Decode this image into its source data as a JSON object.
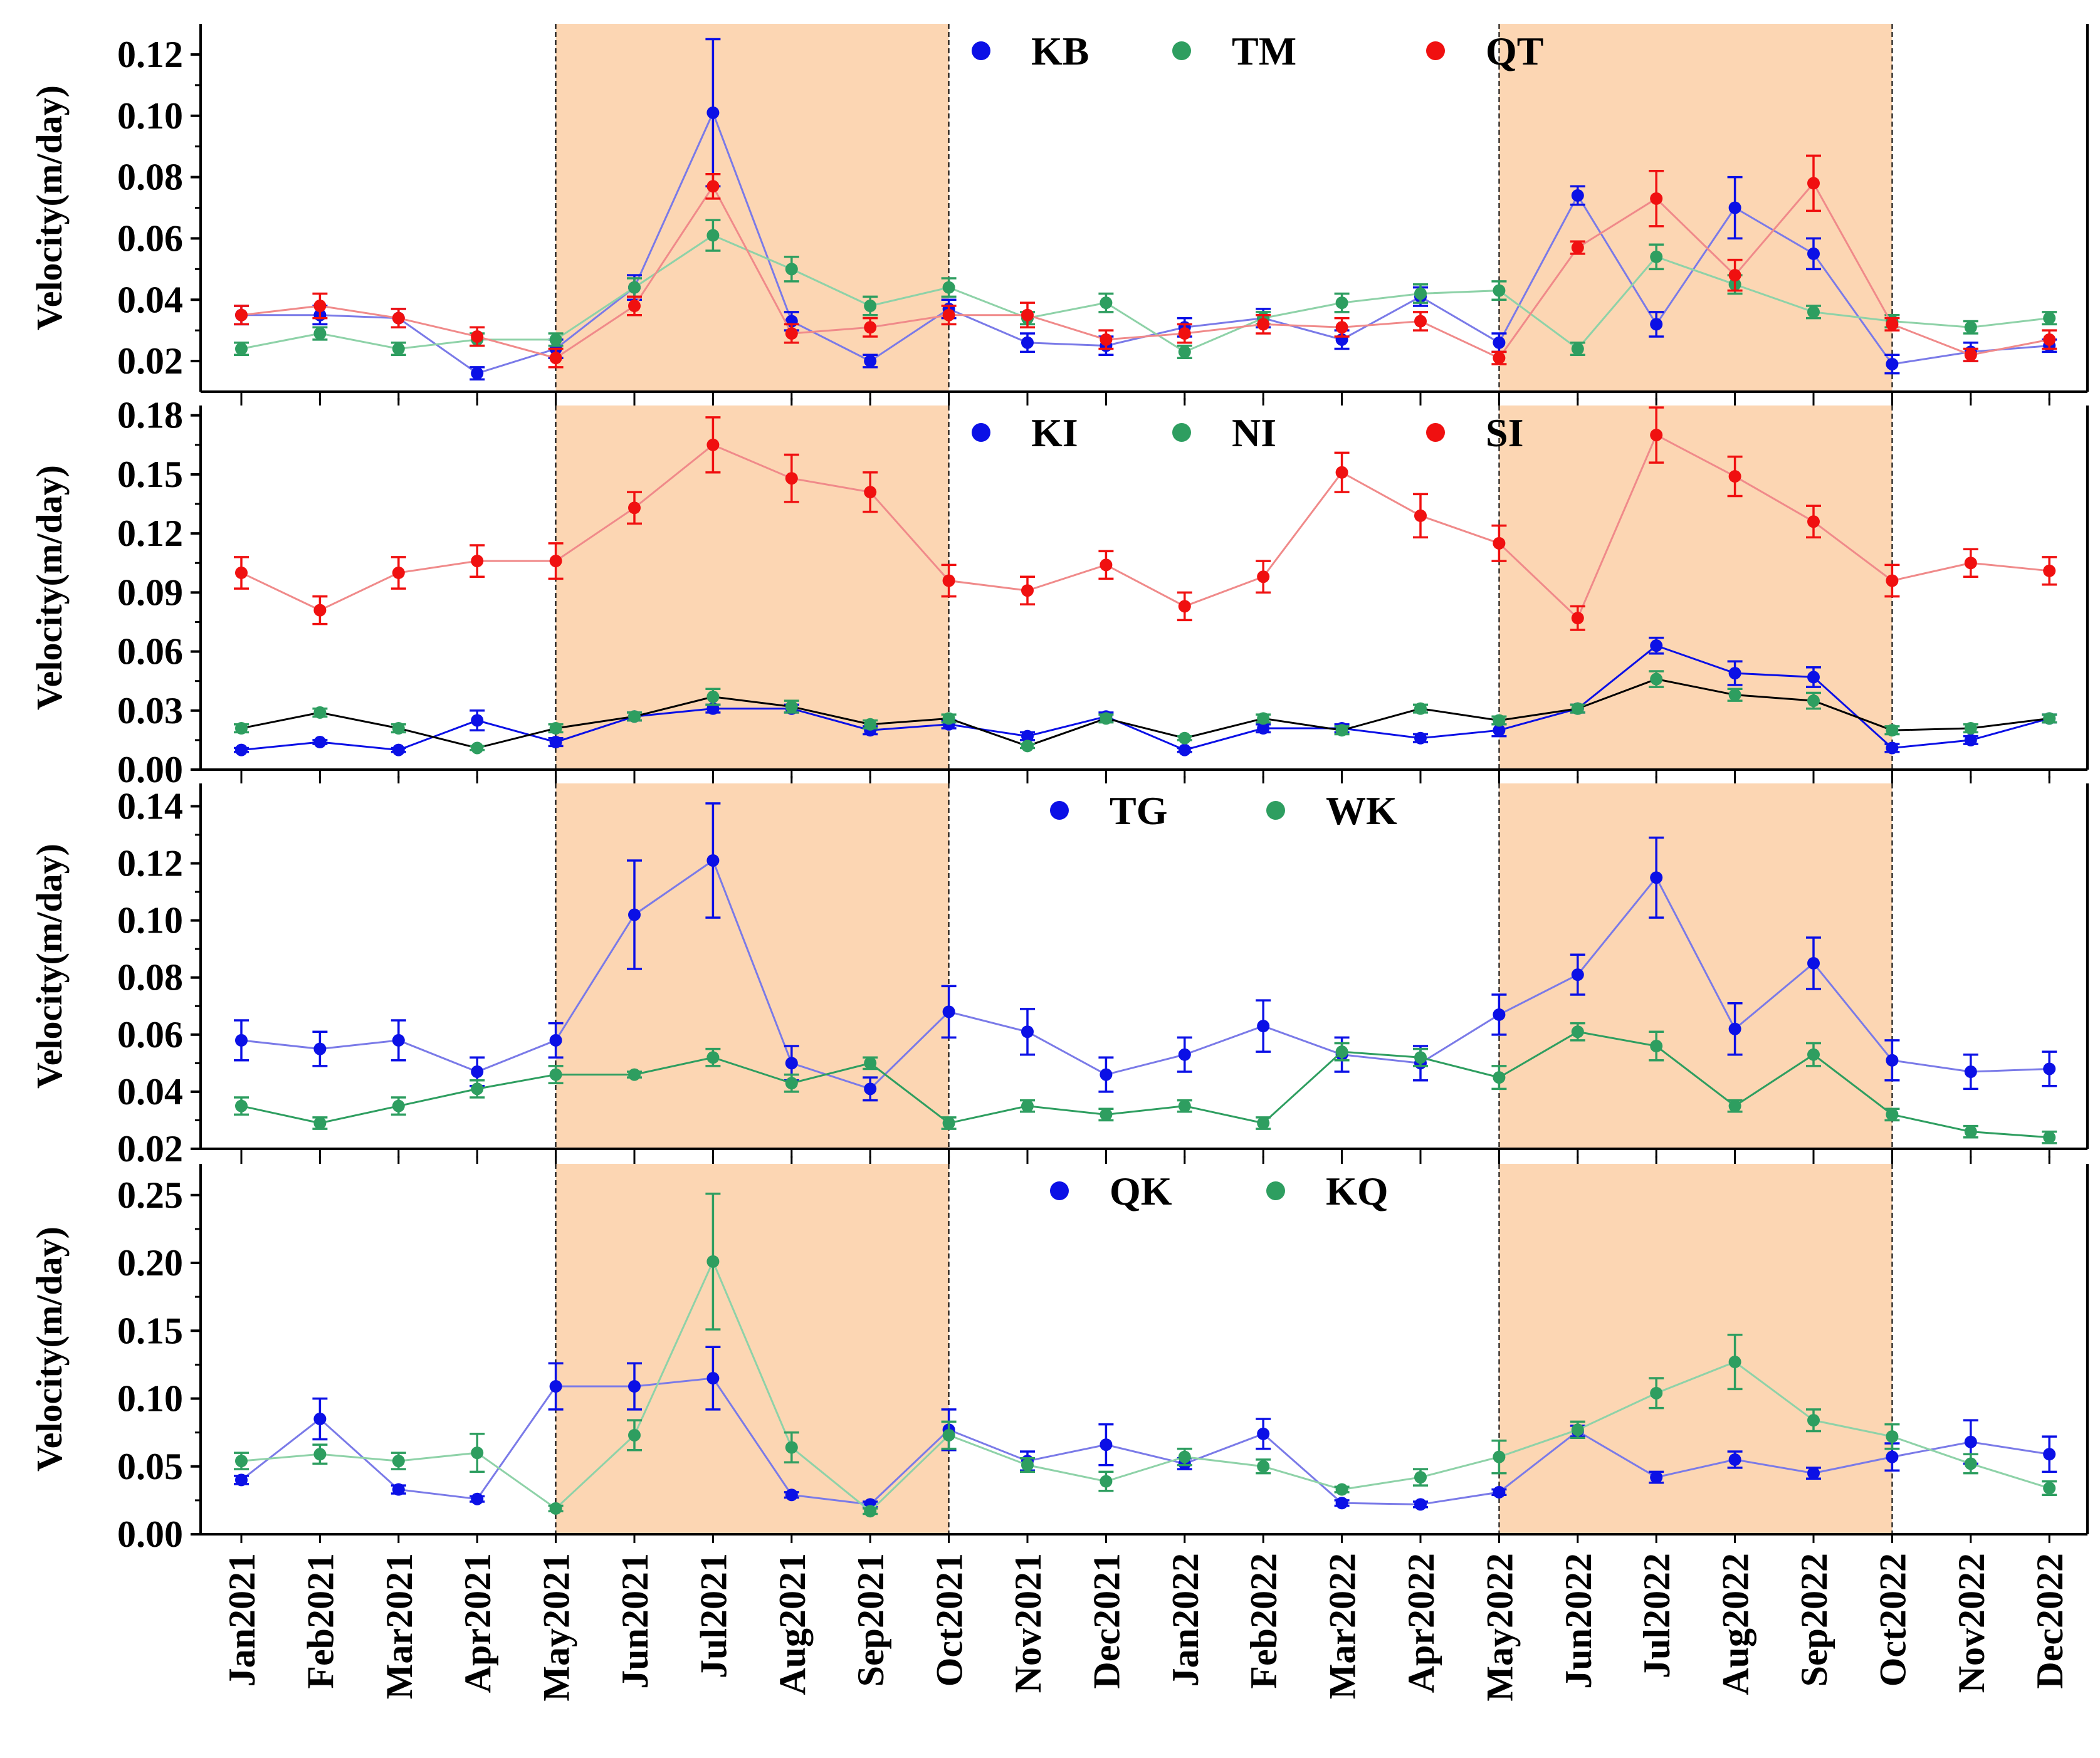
{
  "chart_data": {
    "type": "line",
    "figure_ylabel": "Velocity(m/day)",
    "x": [
      "Jan2021",
      "Feb2021",
      "Mar2021",
      "Apr2021",
      "May2021",
      "Jun2021",
      "Jul2021",
      "Aug2021",
      "Sep2021",
      "Oct2021",
      "Nov2021",
      "Dec2021",
      "Jan2022",
      "Feb2022",
      "Mar2022",
      "Apr2022",
      "May2022",
      "Jun2022",
      "Jul2022",
      "Aug2022",
      "Sep2022",
      "Oct2022",
      "Nov2022",
      "Dec2022"
    ],
    "shaded_periods": [
      [
        "May2021",
        "Oct2021"
      ],
      [
        "May2022",
        "Oct2022"
      ]
    ],
    "colors": {
      "blue": "#0b10e6",
      "green": "#2e9e60",
      "red": "#f01010",
      "shade": "#fcd6b3"
    },
    "panels": [
      {
        "ylabel": "Velocity(m/day)",
        "ylim": [
          0.01,
          0.13
        ],
        "yticks": [
          0.02,
          0.04,
          0.06,
          0.08,
          0.1,
          0.12
        ],
        "tick_labels": [
          "0.02",
          "0.04",
          "0.06",
          "0.08",
          "0.10",
          "0.12"
        ],
        "legend": [
          "KB",
          "TM",
          "QT"
        ],
        "series": [
          {
            "name": "KB",
            "color": "#0b10e6",
            "line": "#7a7ae8",
            "values": [
              0.035,
              0.035,
              0.034,
              0.016,
              0.024,
              0.044,
              0.101,
              0.033,
              0.02,
              0.037,
              0.026,
              0.025,
              0.031,
              0.034,
              0.027,
              0.041,
              0.026,
              0.074,
              0.032,
              0.07,
              0.055,
              0.019,
              0.023,
              0.025
            ],
            "errors": [
              0.003,
              0.003,
              0.003,
              0.002,
              0.003,
              0.004,
              0.024,
              0.003,
              0.002,
              0.003,
              0.003,
              0.003,
              0.003,
              0.003,
              0.003,
              0.003,
              0.003,
              0.003,
              0.004,
              0.01,
              0.005,
              0.003,
              0.003,
              0.002
            ]
          },
          {
            "name": "TM",
            "color": "#2e9e60",
            "line": "#8ed2a8",
            "values": [
              0.024,
              0.029,
              0.024,
              0.027,
              0.027,
              0.044,
              0.061,
              0.05,
              0.038,
              0.044,
              0.034,
              0.039,
              0.023,
              0.034,
              0.039,
              0.042,
              0.043,
              0.024,
              0.054,
              0.045,
              0.036,
              0.033,
              0.031,
              0.034
            ],
            "errors": [
              0.002,
              0.002,
              0.002,
              0.002,
              0.002,
              0.003,
              0.005,
              0.004,
              0.003,
              0.003,
              0.002,
              0.003,
              0.002,
              0.002,
              0.003,
              0.003,
              0.003,
              0.002,
              0.004,
              0.003,
              0.002,
              0.002,
              0.002,
              0.002
            ]
          },
          {
            "name": "QT",
            "color": "#f01010",
            "line": "#f08a8a",
            "values": [
              0.035,
              0.038,
              0.034,
              0.028,
              0.021,
              0.038,
              0.077,
              0.029,
              0.031,
              0.035,
              0.035,
              0.027,
              0.029,
              0.032,
              0.031,
              0.033,
              0.021,
              0.057,
              0.073,
              0.048,
              0.078,
              0.032,
              0.022,
              0.027
            ],
            "errors": [
              0.003,
              0.004,
              0.003,
              0.003,
              0.003,
              0.003,
              0.004,
              0.003,
              0.003,
              0.003,
              0.004,
              0.003,
              0.003,
              0.003,
              0.003,
              0.003,
              0.002,
              0.002,
              0.009,
              0.005,
              0.009,
              0.002,
              0.002,
              0.003
            ]
          }
        ]
      },
      {
        "ylabel": "Velocity(m/day)",
        "ylim": [
          0.0,
          0.185
        ],
        "yticks": [
          0.0,
          0.03,
          0.06,
          0.09,
          0.12,
          0.15,
          0.18
        ],
        "tick_labels": [
          "0.00",
          "0.03",
          "0.06",
          "0.09",
          "0.12",
          "0.15",
          "0.18"
        ],
        "legend": [
          "KI",
          "NI",
          "SI"
        ],
        "series": [
          {
            "name": "KI",
            "color": "#0b10e6",
            "line": "#0b10e6",
            "values": [
              0.01,
              0.014,
              0.01,
              0.025,
              0.014,
              0.027,
              0.031,
              0.031,
              0.02,
              0.023,
              0.017,
              0.027,
              0.01,
              0.021,
              0.021,
              0.016,
              0.02,
              0.031,
              0.063,
              0.049,
              0.047,
              0.011,
              0.015,
              0.026
            ],
            "errors": [
              0.001,
              0.001,
              0.001,
              0.005,
              0.002,
              0.002,
              0.002,
              0.002,
              0.002,
              0.002,
              0.002,
              0.002,
              0.001,
              0.002,
              0.002,
              0.002,
              0.003,
              0.002,
              0.004,
              0.006,
              0.005,
              0.002,
              0.002,
              0.002
            ]
          },
          {
            "name": "NI",
            "color": "#2e9e60",
            "line": "#000000",
            "values": [
              0.021,
              0.029,
              0.021,
              0.011,
              0.021,
              0.027,
              0.037,
              0.032,
              0.023,
              0.026,
              0.012,
              0.026,
              0.016,
              0.026,
              0.02,
              0.031,
              0.025,
              0.031,
              0.046,
              0.038,
              0.035,
              0.02,
              0.021,
              0.026
            ],
            "errors": [
              0.002,
              0.002,
              0.002,
              0.001,
              0.002,
              0.002,
              0.004,
              0.003,
              0.002,
              0.002,
              0.001,
              0.002,
              0.001,
              0.002,
              0.002,
              0.002,
              0.002,
              0.002,
              0.004,
              0.003,
              0.004,
              0.002,
              0.002,
              0.002
            ]
          },
          {
            "name": "SI",
            "color": "#f01010",
            "line": "#f08a8a",
            "values": [
              0.1,
              0.081,
              0.1,
              0.106,
              0.106,
              0.133,
              0.165,
              0.148,
              0.141,
              0.096,
              0.091,
              0.104,
              0.083,
              0.098,
              0.151,
              0.129,
              0.115,
              0.077,
              0.17,
              0.149,
              0.126,
              0.096,
              0.105,
              0.101
            ],
            "errors": [
              0.008,
              0.007,
              0.008,
              0.008,
              0.009,
              0.008,
              0.014,
              0.012,
              0.01,
              0.008,
              0.007,
              0.007,
              0.007,
              0.008,
              0.01,
              0.011,
              0.009,
              0.006,
              0.014,
              0.01,
              0.008,
              0.008,
              0.007,
              0.007
            ]
          }
        ]
      },
      {
        "ylabel": "Velocity(m/day)",
        "ylim": [
          0.02,
          0.148
        ],
        "yticks": [
          0.02,
          0.04,
          0.06,
          0.08,
          0.1,
          0.12,
          0.14
        ],
        "tick_labels": [
          "0.02",
          "0.04",
          "0.06",
          "0.08",
          "0.10",
          "0.12",
          "0.14"
        ],
        "legend": [
          "TG",
          "WK"
        ],
        "series": [
          {
            "name": "TG",
            "color": "#0b10e6",
            "line": "#7a7ae8",
            "values": [
              0.058,
              0.055,
              0.058,
              0.047,
              0.058,
              0.102,
              0.121,
              0.05,
              0.041,
              0.068,
              0.061,
              0.046,
              0.053,
              0.063,
              0.053,
              0.05,
              0.067,
              0.081,
              0.115,
              0.062,
              0.085,
              0.051,
              0.047,
              0.048
            ],
            "errors": [
              0.007,
              0.006,
              0.007,
              0.005,
              0.006,
              0.019,
              0.02,
              0.006,
              0.004,
              0.009,
              0.008,
              0.006,
              0.006,
              0.009,
              0.006,
              0.006,
              0.007,
              0.007,
              0.014,
              0.009,
              0.009,
              0.007,
              0.006,
              0.006
            ]
          },
          {
            "name": "WK",
            "color": "#2e9e60",
            "line": "#2e9e60",
            "values": [
              0.035,
              0.029,
              0.035,
              0.041,
              0.046,
              0.046,
              0.052,
              0.043,
              0.05,
              0.029,
              0.035,
              0.032,
              0.035,
              0.029,
              0.054,
              0.052,
              0.045,
              0.061,
              0.056,
              0.035,
              0.053,
              0.032,
              0.026,
              0.024
            ],
            "errors": [
              0.003,
              0.002,
              0.003,
              0.003,
              0.003,
              0.001,
              0.003,
              0.003,
              0.002,
              0.002,
              0.002,
              0.002,
              0.002,
              0.002,
              0.003,
              0.003,
              0.004,
              0.003,
              0.005,
              0.002,
              0.004,
              0.002,
              0.002,
              0.002
            ]
          }
        ]
      },
      {
        "ylabel": "Velocity(m/day)",
        "ylim": [
          0.0,
          0.273
        ],
        "yticks": [
          0.0,
          0.05,
          0.1,
          0.15,
          0.2,
          0.25
        ],
        "tick_labels": [
          "0.00",
          "0.05",
          "0.10",
          "0.15",
          "0.20",
          "0.25"
        ],
        "legend": [
          "QK",
          "KQ"
        ],
        "series": [
          {
            "name": "QK",
            "color": "#0b10e6",
            "line": "#7a7ae8",
            "values": [
              0.04,
              0.085,
              0.033,
              0.026,
              0.109,
              0.109,
              0.115,
              0.029,
              0.022,
              0.077,
              0.054,
              0.066,
              0.052,
              0.074,
              0.023,
              0.022,
              0.031,
              0.076,
              0.042,
              0.055,
              0.045,
              0.057,
              0.068,
              0.059
            ],
            "errors": [
              0.003,
              0.015,
              0.003,
              0.002,
              0.017,
              0.017,
              0.023,
              0.002,
              0.002,
              0.015,
              0.007,
              0.015,
              0.004,
              0.011,
              0.002,
              0.002,
              0.002,
              0.004,
              0.004,
              0.006,
              0.004,
              0.01,
              0.016,
              0.013
            ]
          },
          {
            "name": "KQ",
            "color": "#2e9e60",
            "line": "#8ed2a8",
            "values": [
              0.054,
              0.059,
              0.054,
              0.06,
              0.019,
              0.073,
              0.201,
              0.064,
              0.017,
              0.073,
              0.051,
              0.039,
              0.057,
              0.05,
              0.033,
              0.042,
              0.057,
              0.077,
              0.104,
              0.127,
              0.084,
              0.072,
              0.052,
              0.034
            ],
            "errors": [
              0.006,
              0.007,
              0.006,
              0.014,
              0.002,
              0.011,
              0.05,
              0.011,
              0.002,
              0.01,
              0.005,
              0.007,
              0.006,
              0.005,
              0.002,
              0.006,
              0.012,
              0.006,
              0.011,
              0.02,
              0.008,
              0.009,
              0.007,
              0.005
            ]
          }
        ]
      }
    ]
  }
}
